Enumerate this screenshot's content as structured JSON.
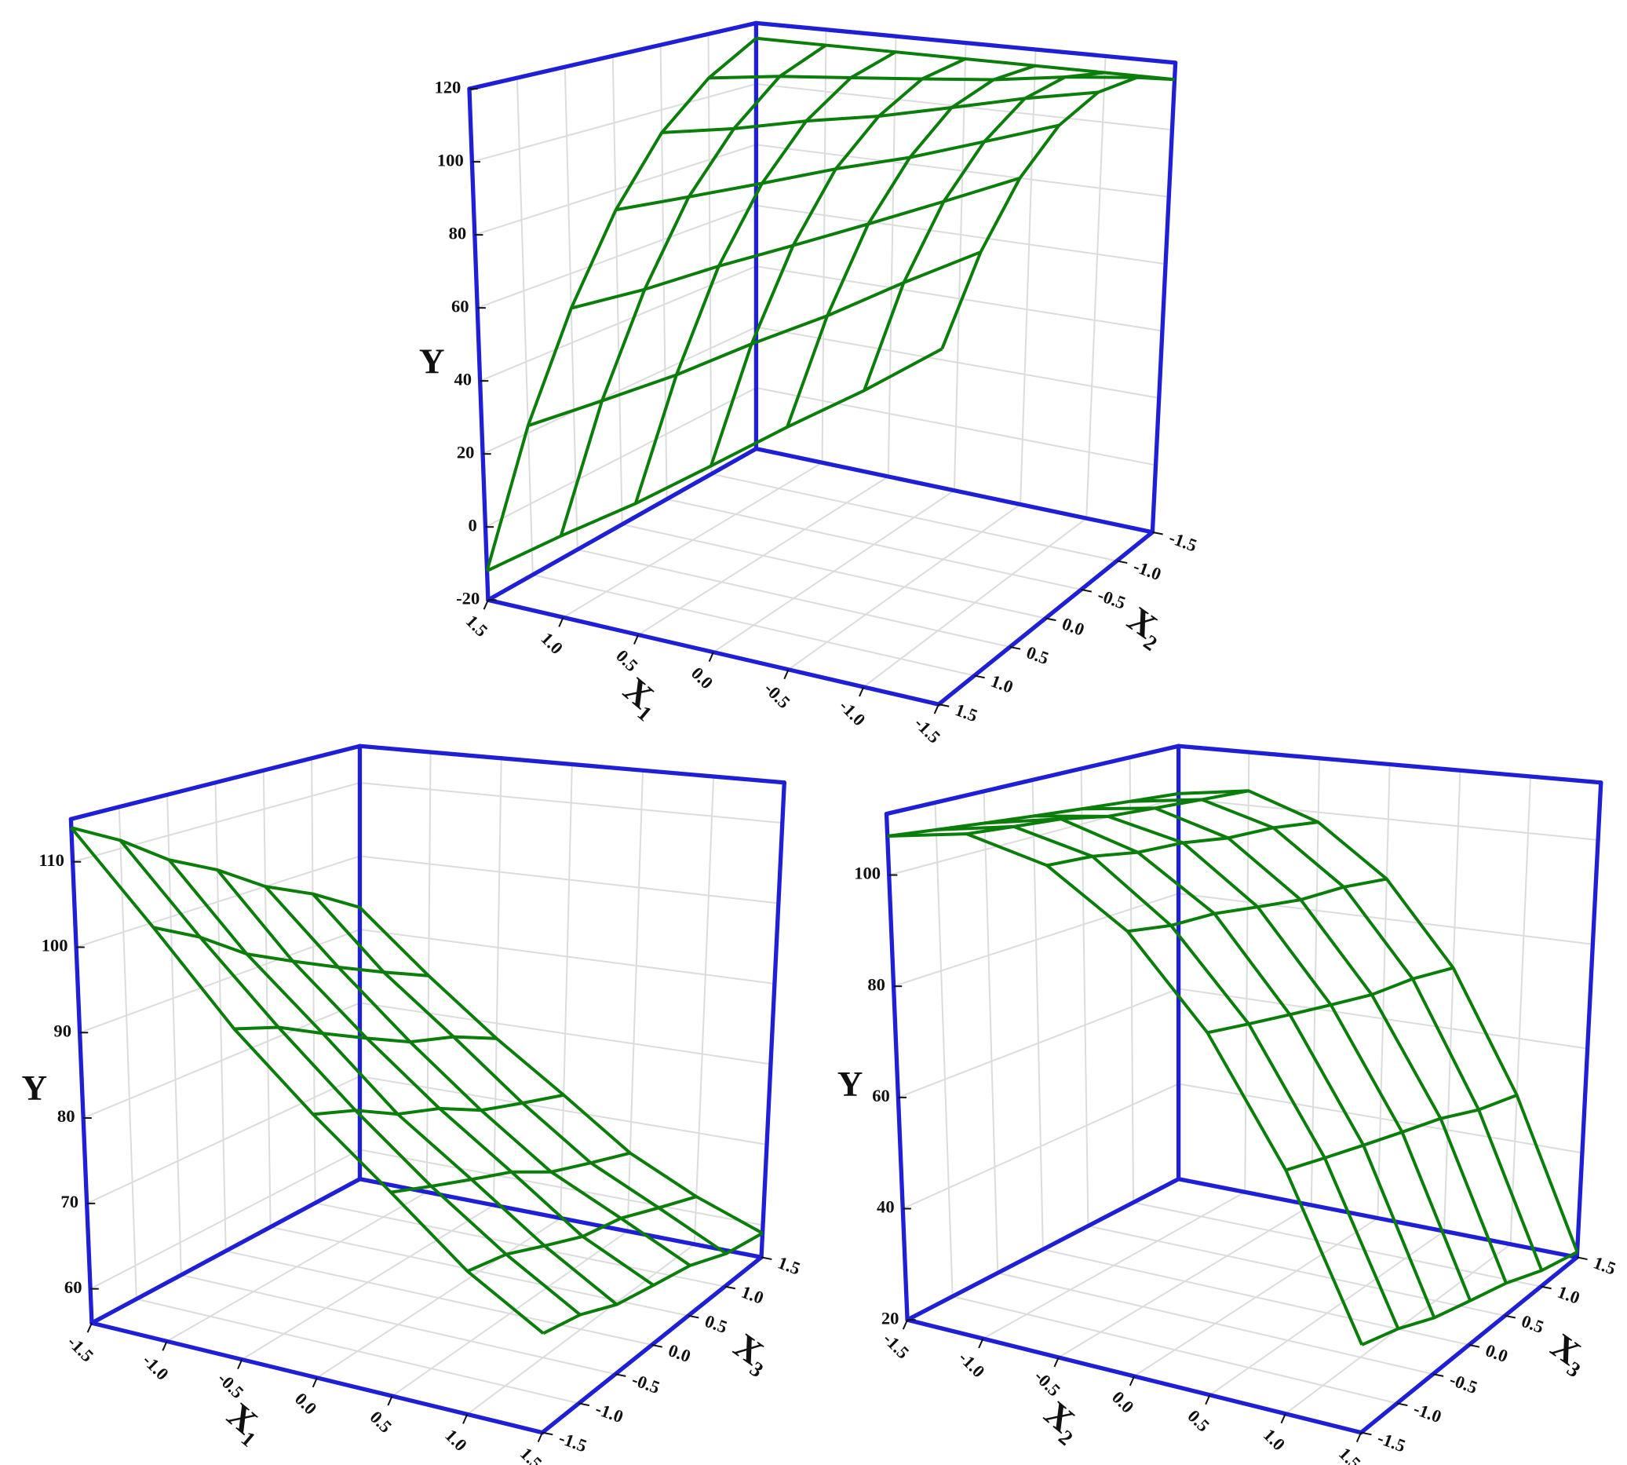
{
  "chart_data": [
    {
      "type": "surface",
      "x_label": "X₁",
      "y_label": "X₂",
      "z_label": "Y",
      "x": [
        -1.5,
        -1,
        -0.5,
        0,
        0.5,
        1,
        1.5
      ],
      "y": [
        -1.5,
        -1,
        -0.5,
        0,
        0.5,
        1,
        1.5
      ],
      "z": [
        [
          115,
          120,
          120,
          115,
          105,
          90,
          70
        ],
        [
          115,
          118,
          116,
          108,
          96,
          79,
          56
        ],
        [
          115,
          115,
          111,
          101,
          87,
          67,
          43
        ],
        [
          115,
          113,
          106,
          95,
          78,
          56,
          29
        ],
        [
          115,
          111,
          102,
          88,
          69,
          44,
          15
        ],
        [
          115,
          109,
          97,
          81,
          59,
          33,
          2
        ],
        [
          115,
          106,
          93,
          74,
          50,
          22,
          -12
        ]
      ],
      "xlim": [
        1.5,
        -1.5
      ],
      "ylim": [
        1.5,
        -1.5
      ],
      "zlim": [
        -20,
        120
      ],
      "xticks": [
        -1.5,
        {
          "value": -1,
          "label": "-1.0"
        },
        -0.5,
        {
          "value": 0,
          "label": "0.0"
        },
        0.5,
        {
          "value": 1,
          "label": "1.0"
        },
        1.5
      ],
      "yticks": [
        -1.5,
        {
          "value": -1,
          "label": "-1.0"
        },
        -0.5,
        {
          "value": 0,
          "label": "0.0"
        },
        0.5,
        {
          "value": 1,
          "label": "1.0"
        },
        1.5
      ],
      "zticks": [
        -20,
        0,
        20,
        40,
        60,
        80,
        100,
        120
      ],
      "color": "#0a7d0a",
      "axis_color": "#1f1fd6",
      "grid": true
    },
    {
      "type": "surface",
      "x_label": "X₁",
      "y_label": "X₃",
      "z_label": "Y",
      "x": [
        -1.5,
        -1,
        -0.5,
        0,
        0.5,
        1,
        1.5
      ],
      "y": [
        -1.5,
        -1,
        -0.5,
        0,
        0.5,
        1,
        1.5
      ],
      "z": [
        [
          114,
          111,
          107,
          104,
          100,
          97,
          93
        ],
        [
          104,
          101,
          97,
          94,
          91,
          88,
          85
        ],
        [
          94,
          92,
          89,
          86,
          83,
          81,
          78
        ],
        [
          86,
          84,
          81,
          79,
          76,
          74,
          72
        ],
        [
          79,
          77,
          75,
          73,
          70,
          68,
          66
        ],
        [
          72,
          71,
          69,
          67,
          66,
          64,
          62
        ],
        [
          67,
          66,
          64,
          63,
          62,
          60,
          59
        ]
      ],
      "xlim": [
        -1.5,
        1.5
      ],
      "ylim": [
        -1.5,
        1.5
      ],
      "zlim": [
        56,
        115
      ],
      "xticks": [
        -1.5,
        {
          "value": -1,
          "label": "-1.0"
        },
        -0.5,
        {
          "value": 0,
          "label": "0.0"
        },
        0.5,
        {
          "value": 1,
          "label": "1.0"
        },
        1.5
      ],
      "yticks": [
        -1.5,
        {
          "value": -1,
          "label": "-1.0"
        },
        -0.5,
        {
          "value": 0,
          "label": "0.0"
        },
        0.5,
        {
          "value": 1,
          "label": "1.0"
        },
        1.5
      ],
      "zticks": [
        60,
        70,
        80,
        90,
        100,
        110
      ],
      "color": "#0a7d0a",
      "axis_color": "#1f1fd6",
      "grid": true
    },
    {
      "type": "surface",
      "x_label": "X₂",
      "y_label": "X₃",
      "z_label": "Y",
      "x": [
        -1.5,
        -1,
        -0.5,
        0,
        0.5,
        1,
        1.5
      ],
      "y": [
        -1.5,
        -1,
        -0.5,
        0,
        0.5,
        1,
        1.5
      ],
      "z": [
        [
          107,
          106,
          105,
          104,
          103,
          102,
          101
        ],
        [
          110,
          109,
          108,
          106,
          105,
          104,
          103
        ],
        [
          107,
          106,
          104,
          103,
          101,
          100,
          98
        ],
        [
          98,
          96,
          95,
          93,
          91,
          90,
          88
        ],
        [
          83,
          81,
          79,
          77,
          75,
          74,
          72
        ],
        [
          62,
          60,
          58,
          56,
          54,
          51,
          49
        ],
        [
          35,
          33,
          30,
          28,
          26,
          23,
          21
        ]
      ],
      "xlim": [
        -1.5,
        1.5
      ],
      "ylim": [
        -1.5,
        1.5
      ],
      "zlim": [
        20,
        111
      ],
      "xticks": [
        -1.5,
        {
          "value": -1,
          "label": "-1.0"
        },
        -0.5,
        {
          "value": 0,
          "label": "0.0"
        },
        0.5,
        {
          "value": 1,
          "label": "1.0"
        },
        1.5
      ],
      "yticks": [
        -1.5,
        {
          "value": -1,
          "label": "-1.0"
        },
        -0.5,
        {
          "value": 0,
          "label": "0.0"
        },
        0.5,
        {
          "value": 1,
          "label": "1.0"
        },
        1.5
      ],
      "zticks": [
        20,
        40,
        60,
        80,
        100
      ],
      "color": "#0a7d0a",
      "axis_color": "#1f1fd6",
      "grid": true
    }
  ]
}
